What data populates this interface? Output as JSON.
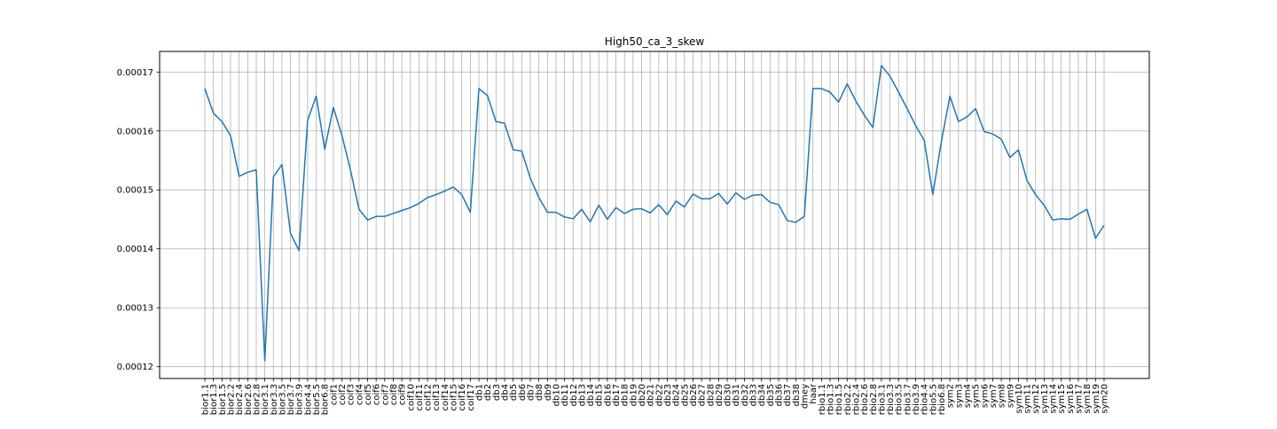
{
  "chart_data": {
    "type": "line",
    "title": "High50_ca_3_skew",
    "xlabel": "",
    "ylabel": "",
    "grid": true,
    "legend": "none",
    "ylim": [
      0.000118,
      0.0001735
    ],
    "yticks": [
      "0.00012",
      "0.00013",
      "0.00014",
      "0.00015",
      "0.00016",
      "0.00017"
    ],
    "ytick_values": [
      0.00012,
      0.00013,
      0.00014,
      0.00015,
      0.00016,
      0.00017
    ],
    "line_color": "#1f77b4",
    "categories": [
      "bior1.1",
      "bior1.3",
      "bior1.5",
      "bior2.2",
      "bior2.4",
      "bior2.6",
      "bior2.8",
      "bior3.1",
      "bior3.3",
      "bior3.5",
      "bior3.7",
      "bior3.9",
      "bior4.4",
      "bior5.5",
      "bior6.8",
      "coif1",
      "coif2",
      "coif3",
      "coif4",
      "coif5",
      "coif6",
      "coif7",
      "coif8",
      "coif9",
      "coif10",
      "coif11",
      "coif12",
      "coif13",
      "coif14",
      "coif15",
      "coif16",
      "coif17",
      "db1",
      "db2",
      "db3",
      "db4",
      "db5",
      "db6",
      "db7",
      "db8",
      "db9",
      "db10",
      "db11",
      "db12",
      "db13",
      "db14",
      "db15",
      "db16",
      "db17",
      "db18",
      "db19",
      "db20",
      "db21",
      "db22",
      "db23",
      "db24",
      "db25",
      "db26",
      "db27",
      "db28",
      "db29",
      "db30",
      "db31",
      "db32",
      "db33",
      "db34",
      "db35",
      "db36",
      "db37",
      "db38",
      "dmey",
      "haar",
      "rbio1.1",
      "rbio1.3",
      "rbio1.5",
      "rbio2.2",
      "rbio2.4",
      "rbio2.6",
      "rbio2.8",
      "rbio3.1",
      "rbio3.3",
      "rbio3.5",
      "rbio3.7",
      "rbio3.9",
      "rbio4.4",
      "rbio5.5",
      "rbio6.8",
      "sym2",
      "sym3",
      "sym4",
      "sym5",
      "sym6",
      "sym7",
      "sym8",
      "sym9",
      "sym10",
      "sym11",
      "sym12",
      "sym13",
      "sym14",
      "sym15",
      "sym16",
      "sym17",
      "sym18",
      "sym19",
      "sym20"
    ],
    "series": [
      {
        "values": [
          0.0001672,
          0.000163,
          0.0001616,
          0.0001592,
          0.0001523,
          0.000153,
          0.0001534,
          0.000121,
          0.0001522,
          0.0001543,
          0.0001426,
          0.0001397,
          0.0001618,
          0.0001659,
          0.0001569,
          0.000164,
          0.0001593,
          0.0001534,
          0.0001467,
          0.0001449,
          0.0001455,
          0.0001455,
          0.000146,
          0.0001465,
          0.000147,
          0.0001477,
          0.0001487,
          0.0001492,
          0.0001498,
          0.0001505,
          0.0001492,
          0.0001462,
          0.0001672,
          0.000166,
          0.0001616,
          0.0001613,
          0.0001568,
          0.0001566,
          0.000152,
          0.0001487,
          0.0001462,
          0.0001462,
          0.0001454,
          0.0001451,
          0.0001467,
          0.0001446,
          0.0001474,
          0.000145,
          0.000147,
          0.000146,
          0.0001467,
          0.0001468,
          0.0001461,
          0.0001475,
          0.0001458,
          0.0001481,
          0.0001471,
          0.0001493,
          0.0001485,
          0.0001485,
          0.0001494,
          0.0001476,
          0.0001495,
          0.0001484,
          0.0001491,
          0.0001492,
          0.0001479,
          0.0001475,
          0.0001448,
          0.0001445,
          0.0001455,
          0.0001672,
          0.0001672,
          0.0001666,
          0.0001649,
          0.000168,
          0.0001651,
          0.0001627,
          0.0001606,
          0.0001711,
          0.0001693,
          0.0001666,
          0.0001638,
          0.0001609,
          0.0001584,
          0.0001492,
          0.0001582,
          0.0001659,
          0.0001616,
          0.0001624,
          0.0001638,
          0.0001599,
          0.0001595,
          0.0001586,
          0.0001555,
          0.0001568,
          0.0001516,
          0.0001492,
          0.0001474,
          0.0001449,
          0.0001451,
          0.000145,
          0.0001459,
          0.0001467,
          0.0001418,
          0.000144
        ]
      }
    ]
  }
}
